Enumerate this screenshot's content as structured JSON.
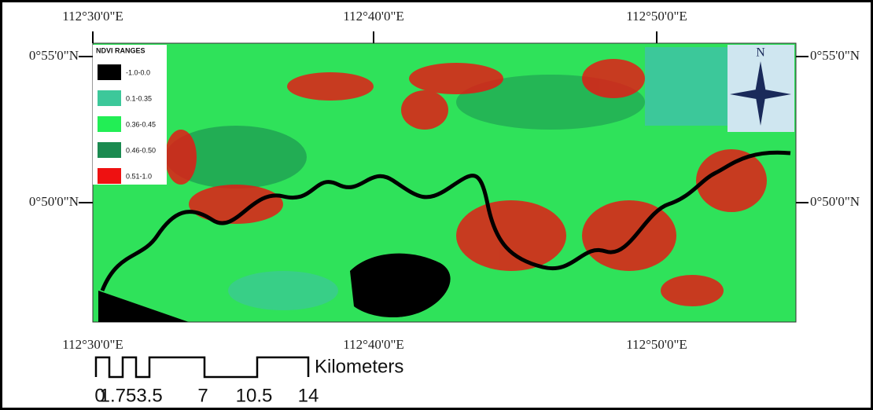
{
  "map": {
    "top_labels": [
      "112°30'0\"E",
      "112°40'0\"E",
      "112°50'0\"E"
    ],
    "bottom_labels": [
      "112°30'0\"E",
      "112°40'0\"E",
      "112°50'0\"E"
    ],
    "left_labels": [
      "0°55'0\"N",
      "0°50'0\"N"
    ],
    "right_labels": [
      "0°55'0\"N",
      "0°50'0\"N"
    ],
    "legend": {
      "title": "NDVI RANGES",
      "items": [
        {
          "label": "-1.0-0.0",
          "color": "#000000"
        },
        {
          "label": "0.1-0.35",
          "color": "#3cc89a"
        },
        {
          "label": "0.36-0.45",
          "color": "#22ee55"
        },
        {
          "label": "0.46-0.50",
          "color": "#1a8a50"
        },
        {
          "label": "0.51-1.0",
          "color": "#ee1111"
        }
      ]
    },
    "north": "N",
    "scale_bar": {
      "ticks": [
        "0",
        "1.75",
        "3.5",
        "7",
        "10.5",
        "14"
      ],
      "unit": "Kilometers"
    }
  }
}
